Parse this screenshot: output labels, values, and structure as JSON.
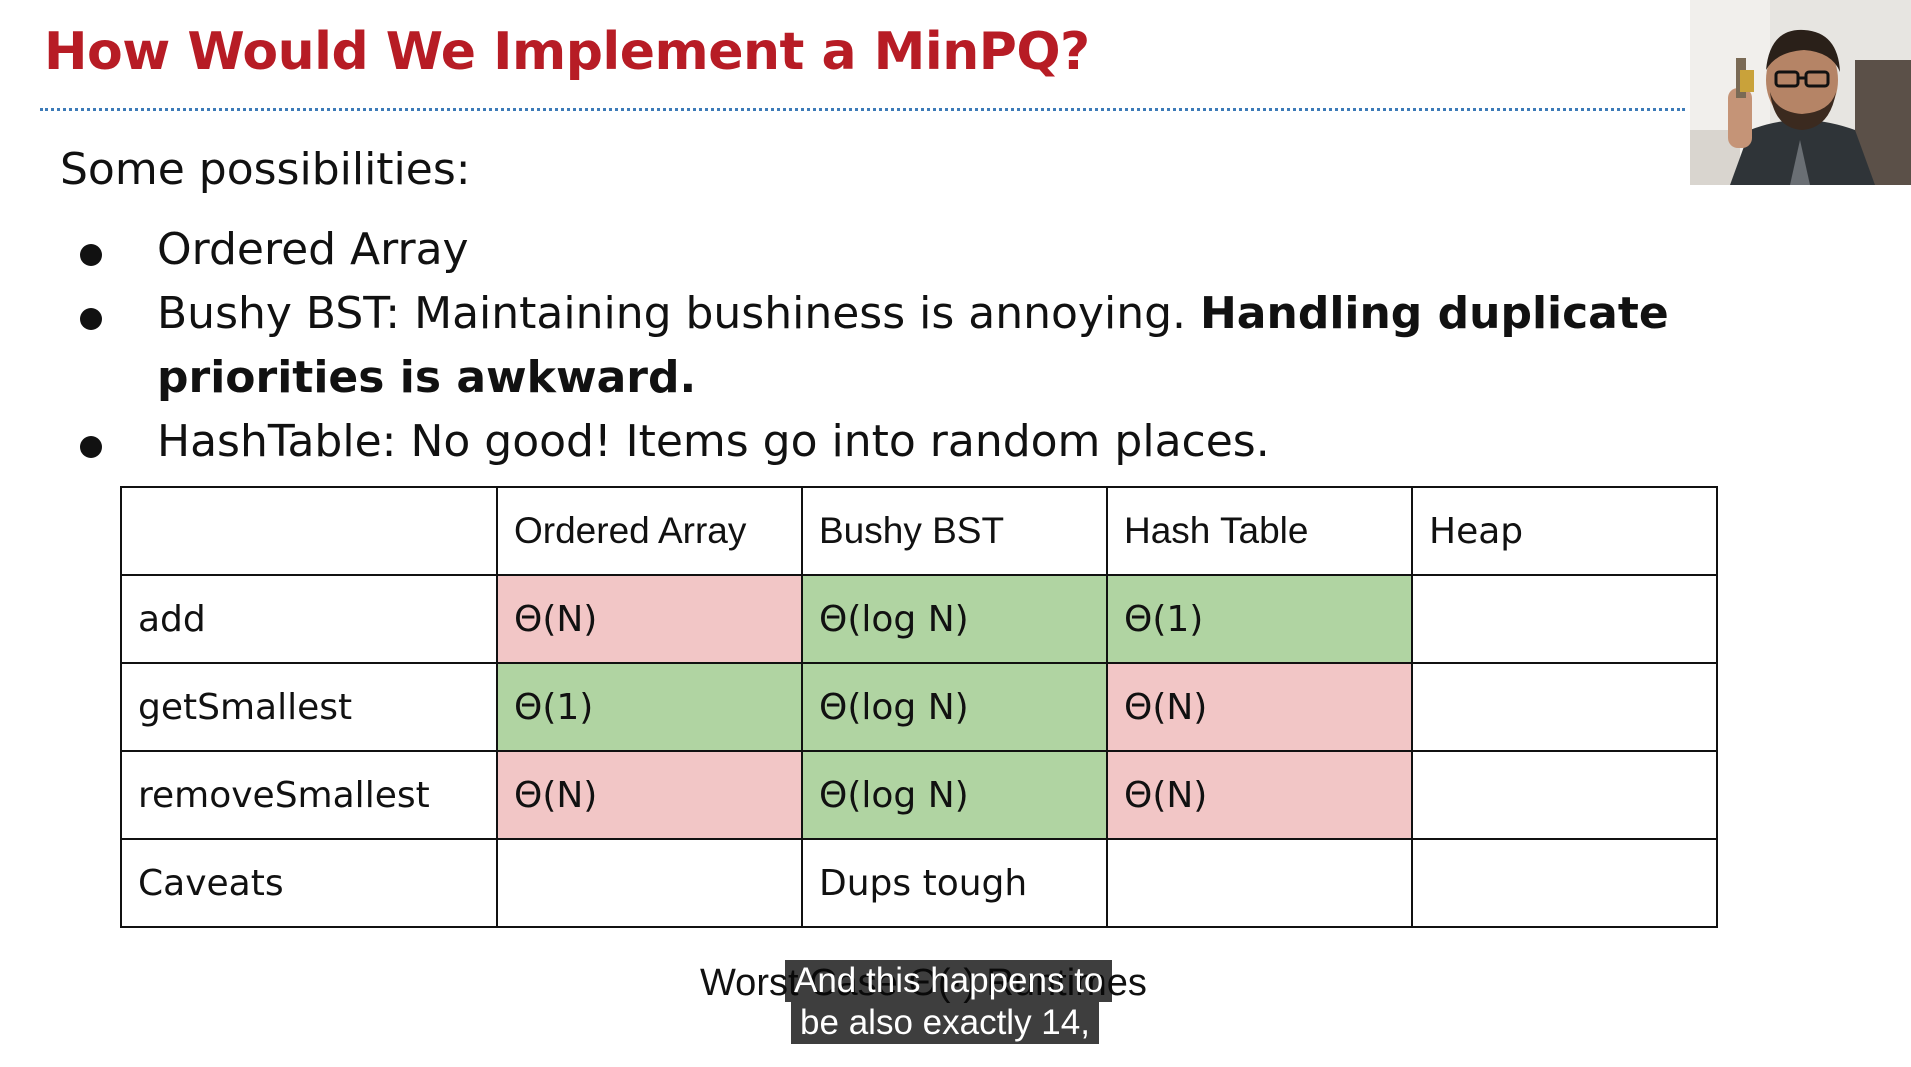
{
  "slide": {
    "title": "How Would We Implement a MinPQ?",
    "intro": "Some possibilities:",
    "bullets": [
      {
        "plain": "Ordered Array",
        "bold": ""
      },
      {
        "plain": "Bushy BST: Maintaining bushiness is annoying. ",
        "bold": "Handling duplicate priorities is awkward."
      },
      {
        "plain": "HashTable: No good! Items go into random places.",
        "bold": ""
      }
    ]
  },
  "table": {
    "headers": [
      "",
      "Ordered Array",
      "Bushy BST",
      "Hash Table",
      "Heap"
    ],
    "rows": [
      {
        "label": "add",
        "cells": [
          "Θ(N)",
          "Θ(log N)",
          "Θ(1)",
          ""
        ],
        "status": [
          "bad",
          "good",
          "good",
          "none"
        ]
      },
      {
        "label": "getSmallest",
        "cells": [
          "Θ(1)",
          "Θ(log N)",
          "Θ(N)",
          ""
        ],
        "status": [
          "good",
          "good",
          "bad",
          "none"
        ]
      },
      {
        "label": "removeSmallest",
        "cells": [
          "Θ(N)",
          "Θ(log N)",
          "Θ(N)",
          ""
        ],
        "status": [
          "bad",
          "good",
          "bad",
          "none"
        ]
      },
      {
        "label": "Caveats",
        "cells": [
          "",
          "Dups tough",
          "",
          ""
        ],
        "status": [
          "none",
          "none",
          "none",
          "none"
        ]
      }
    ]
  },
  "caption": {
    "partially_hidden_text": "Worst Case Θ(·) Runtimes"
  },
  "subtitles": {
    "line1": "And this happens to",
    "line2": "be also exactly 14,"
  },
  "colors": {
    "title": "#b71c25",
    "rule": "#3d7bb8",
    "good": "#b0d4a2",
    "bad": "#f2c6c6",
    "subtitle_bg": "#080808"
  },
  "webcam": {
    "icon": "presenter-video-feed"
  }
}
